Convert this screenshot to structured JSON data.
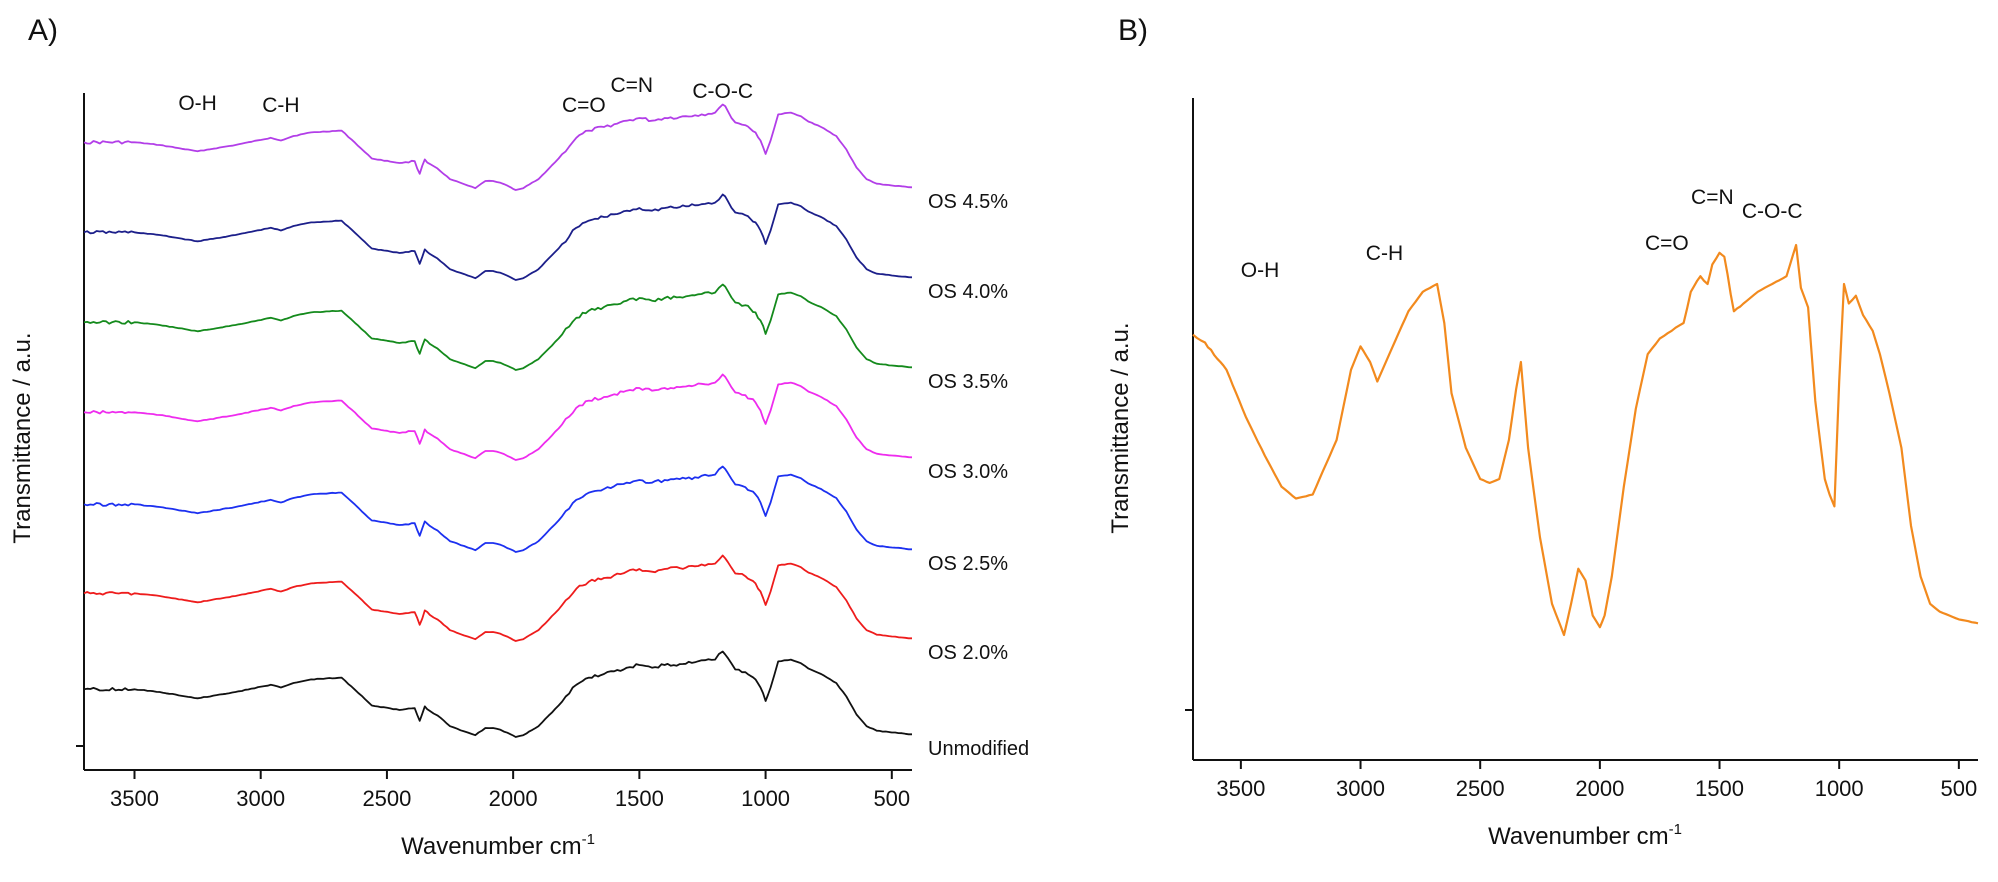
{
  "chart_data": [
    {
      "panel": "A)",
      "type": "line",
      "xlabel": "Wavenumber cm",
      "xlabel_sup": "-1",
      "ylabel": "Transmittance / a.u.",
      "xlim": [
        3700,
        420
      ],
      "x_reversed": true,
      "xticks": [
        3500,
        3000,
        2500,
        2000,
        1500,
        1000,
        500
      ],
      "annotations": [
        {
          "text": "O-H",
          "x": 3250
        },
        {
          "text": "C-H",
          "x": 2920
        },
        {
          "text": "C=O",
          "x": 1720
        },
        {
          "text": "C=N",
          "x": 1530
        },
        {
          "text": "C-O-C",
          "x": 1170
        }
      ],
      "series": [
        {
          "name": "OS 4.5%",
          "color": "#b23ee8"
        },
        {
          "name": "OS 4.0%",
          "color": "#1c1f8a"
        },
        {
          "name": "OS 3.5%",
          "color": "#148a1c"
        },
        {
          "name": "OS 3.0%",
          "color": "#ee2cee"
        },
        {
          "name": "OS 2.5%",
          "color": "#1c30f0"
        },
        {
          "name": "OS 2.0%",
          "color": "#ee1c1c"
        },
        {
          "name": "Unmodified",
          "color": "#111111"
        }
      ],
      "spectrum": {
        "x": [
          3700,
          3500,
          3400,
          3250,
          3100,
          2960,
          2920,
          2870,
          2800,
          2680,
          2640,
          2560,
          2450,
          2390,
          2370,
          2350,
          2330,
          2300,
          2250,
          2180,
          2150,
          2110,
          2080,
          2050,
          2010,
          1990,
          1960,
          1900,
          1820,
          1750,
          1700,
          1640,
          1600,
          1550,
          1500,
          1450,
          1400,
          1340,
          1280,
          1200,
          1170,
          1150,
          1120,
          1080,
          1060,
          1040,
          1020,
          1000,
          980,
          950,
          900,
          860,
          830,
          780,
          720,
          680,
          640,
          600,
          560,
          500,
          420
        ],
        "y_rel": [
          0.53,
          0.53,
          0.5,
          0.43,
          0.5,
          0.58,
          0.55,
          0.6,
          0.64,
          0.66,
          0.56,
          0.35,
          0.3,
          0.32,
          0.18,
          0.34,
          0.29,
          0.24,
          0.12,
          0.05,
          0.02,
          0.1,
          0.1,
          0.08,
          0.03,
          0.0,
          0.02,
          0.12,
          0.35,
          0.58,
          0.66,
          0.7,
          0.73,
          0.77,
          0.8,
          0.77,
          0.8,
          0.81,
          0.83,
          0.86,
          0.95,
          0.88,
          0.75,
          0.72,
          0.68,
          0.64,
          0.55,
          0.4,
          0.55,
          0.84,
          0.86,
          0.82,
          0.76,
          0.7,
          0.6,
          0.45,
          0.25,
          0.12,
          0.07,
          0.05,
          0.03
        ]
      }
    },
    {
      "panel": "B)",
      "type": "line",
      "xlabel": "Wavenumber cm",
      "xlabel_sup": "-1",
      "ylabel": "Transmittance / a.u.",
      "xlim": [
        3700,
        420
      ],
      "x_reversed": true,
      "xticks": [
        3500,
        3000,
        2500,
        2000,
        1500,
        1000,
        500
      ],
      "annotations": [
        {
          "text": "O-H",
          "x": 3420
        },
        {
          "text": "C-H",
          "x": 2900
        },
        {
          "text": "C=O",
          "x": 1720
        },
        {
          "text": "C=N",
          "x": 1530
        },
        {
          "text": "C-O-C",
          "x": 1280
        }
      ],
      "series": [
        {
          "color": "#f28a1e",
          "x": [
            3700,
            3650,
            3560,
            3480,
            3400,
            3330,
            3270,
            3200,
            3100,
            3040,
            3000,
            2960,
            2930,
            2880,
            2800,
            2740,
            2680,
            2650,
            2620,
            2560,
            2500,
            2460,
            2420,
            2380,
            2350,
            2330,
            2300,
            2250,
            2200,
            2150,
            2120,
            2090,
            2060,
            2030,
            2000,
            1980,
            1950,
            1900,
            1850,
            1800,
            1750,
            1700,
            1650,
            1620,
            1580,
            1550,
            1530,
            1500,
            1480,
            1440,
            1400,
            1340,
            1280,
            1220,
            1180,
            1160,
            1130,
            1100,
            1060,
            1040,
            1020,
            1000,
            980,
            960,
            930,
            900,
            860,
            830,
            790,
            740,
            700,
            660,
            620,
            580,
            540,
            500,
            420
          ],
          "y": [
            0.77,
            0.75,
            0.68,
            0.56,
            0.46,
            0.38,
            0.35,
            0.36,
            0.5,
            0.68,
            0.74,
            0.7,
            0.65,
            0.72,
            0.83,
            0.88,
            0.9,
            0.8,
            0.62,
            0.48,
            0.4,
            0.39,
            0.4,
            0.5,
            0.63,
            0.7,
            0.48,
            0.25,
            0.08,
            0.0,
            0.08,
            0.17,
            0.14,
            0.05,
            0.02,
            0.05,
            0.15,
            0.38,
            0.58,
            0.72,
            0.76,
            0.78,
            0.8,
            0.88,
            0.92,
            0.9,
            0.95,
            0.98,
            0.97,
            0.83,
            0.85,
            0.88,
            0.9,
            0.92,
            1.0,
            0.89,
            0.84,
            0.6,
            0.4,
            0.36,
            0.33,
            0.65,
            0.9,
            0.85,
            0.87,
            0.82,
            0.78,
            0.72,
            0.62,
            0.48,
            0.28,
            0.15,
            0.08,
            0.06,
            0.05,
            0.04,
            0.03
          ]
        }
      ]
    }
  ]
}
